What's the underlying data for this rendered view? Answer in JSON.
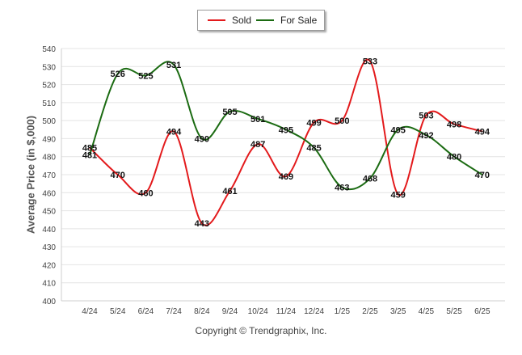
{
  "chart_data": {
    "type": "line",
    "ylabel": "Average Price (in $,000)",
    "ylim": [
      400,
      540
    ],
    "yticks": [
      400,
      410,
      420,
      430,
      440,
      450,
      460,
      470,
      480,
      490,
      500,
      510,
      520,
      530,
      540
    ],
    "categories": [
      "4/24",
      "5/24",
      "6/24",
      "7/24",
      "8/24",
      "9/24",
      "10/24",
      "11/24",
      "12/24",
      "1/25",
      "2/25",
      "3/25",
      "4/25",
      "5/25",
      "6/25"
    ],
    "series": [
      {
        "name": "Sold",
        "color": "#e31a1c",
        "values": [
          485,
          470,
          460,
          494,
          443,
          461,
          487,
          469,
          499,
          500,
          533,
          459,
          503,
          498,
          494
        ]
      },
      {
        "name": "For Sale",
        "color": "#1b6b12",
        "values": [
          481,
          526,
          525,
          531,
          490,
          505,
          501,
          495,
          485,
          463,
          468,
          495,
          492,
          480,
          470
        ]
      }
    ],
    "grid": true,
    "legend_position": "top-center"
  },
  "footer": {
    "copyright": "Copyright © Trendgraphix, Inc."
  }
}
